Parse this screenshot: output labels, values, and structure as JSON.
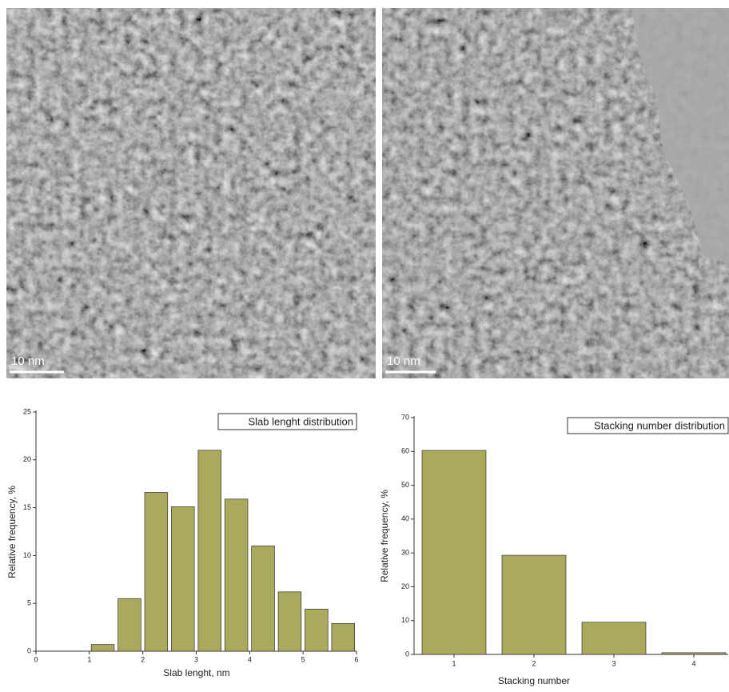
{
  "images": [
    {
      "scale_bar": "10 nm"
    },
    {
      "scale_bar": "10 nm"
    }
  ],
  "chart_data": [
    {
      "type": "histogram",
      "title": "Slab lenght distribution",
      "x_label": "Slab lenght, nm",
      "y_label": "Relative frequency, %",
      "bins": [
        1,
        1.5,
        2,
        2.5,
        3,
        3.5,
        4,
        4.5,
        5,
        5.5,
        6
      ],
      "values": [
        0.7,
        5.5,
        16.6,
        15.1,
        21.0,
        15.9,
        11.0,
        6.2,
        4.4,
        2.9
      ],
      "color": "#aaaa5c",
      "xlim": [
        0,
        6
      ],
      "ylim": [
        0,
        25
      ],
      "xticks": [
        0,
        1,
        2,
        3,
        4,
        5,
        6
      ],
      "yticks": [
        0,
        5,
        10,
        15,
        20,
        25
      ]
    },
    {
      "type": "bar",
      "title": "Stacking number distribution",
      "x_label": "Stacking number",
      "y_label": "Relative frequency, %",
      "categories": [
        "1",
        "2",
        "3",
        "4"
      ],
      "values": [
        60.3,
        29.3,
        9.5,
        0.5
      ],
      "color": "#aaaa5c",
      "ylim": [
        0,
        70
      ],
      "yticks": [
        0,
        10,
        20,
        30,
        40,
        50,
        60,
        70
      ]
    }
  ]
}
